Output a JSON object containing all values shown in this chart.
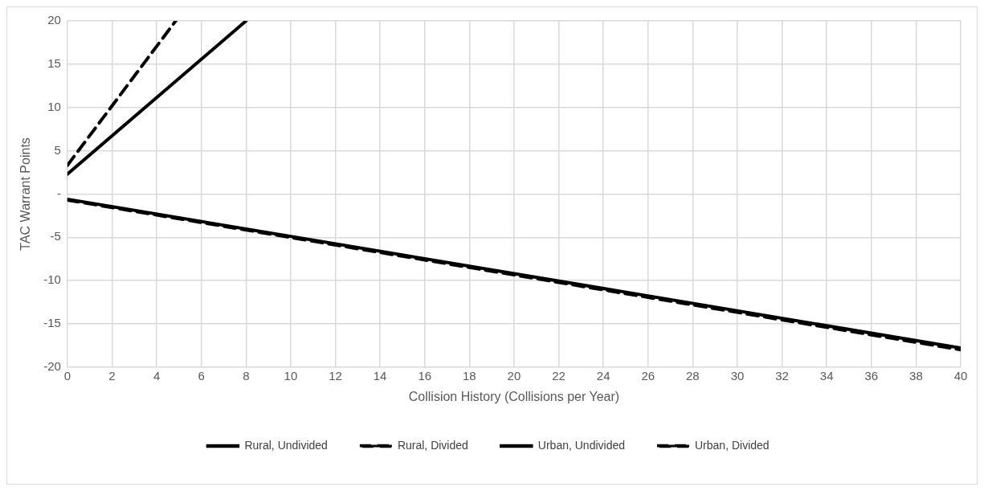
{
  "chart_data": {
    "type": "line",
    "xlabel": "Collision History (Collisions per Year)",
    "ylabel": "TAC Warrant Points",
    "xlim": [
      0,
      40
    ],
    "xticks": [
      0,
      2,
      4,
      6,
      8,
      10,
      12,
      14,
      16,
      18,
      20,
      22,
      24,
      26,
      28,
      30,
      32,
      34,
      36,
      38,
      40
    ],
    "ylim": [
      -20,
      20
    ],
    "yticks": [
      -20,
      -15,
      -10,
      -5,
      {
        "value": 0,
        "label": "-"
      },
      5,
      10,
      15,
      20
    ],
    "grid": true,
    "legend": "bottom",
    "marker": "none",
    "series": [
      {
        "name": "Rural, Undivided",
        "color": "#000000",
        "x": [
          0,
          8
        ],
        "values": [
          2.3,
          20
        ],
        "line_style": "solid"
      },
      {
        "name": "Rural, Divided",
        "color": "#000000",
        "x": [
          0,
          4.85
        ],
        "values": [
          3.3,
          20
        ],
        "line_style": "dashed"
      },
      {
        "name": "Urban, Undivided",
        "color": "#000000",
        "x": [
          0,
          40
        ],
        "values": [
          -0.6,
          -17.8
        ],
        "line_style": "solid"
      },
      {
        "name": "Urban, Divided",
        "color": "#000000",
        "x": [
          0,
          40
        ],
        "values": [
          -0.7,
          -18
        ],
        "line_style": "dashed"
      }
    ]
  }
}
